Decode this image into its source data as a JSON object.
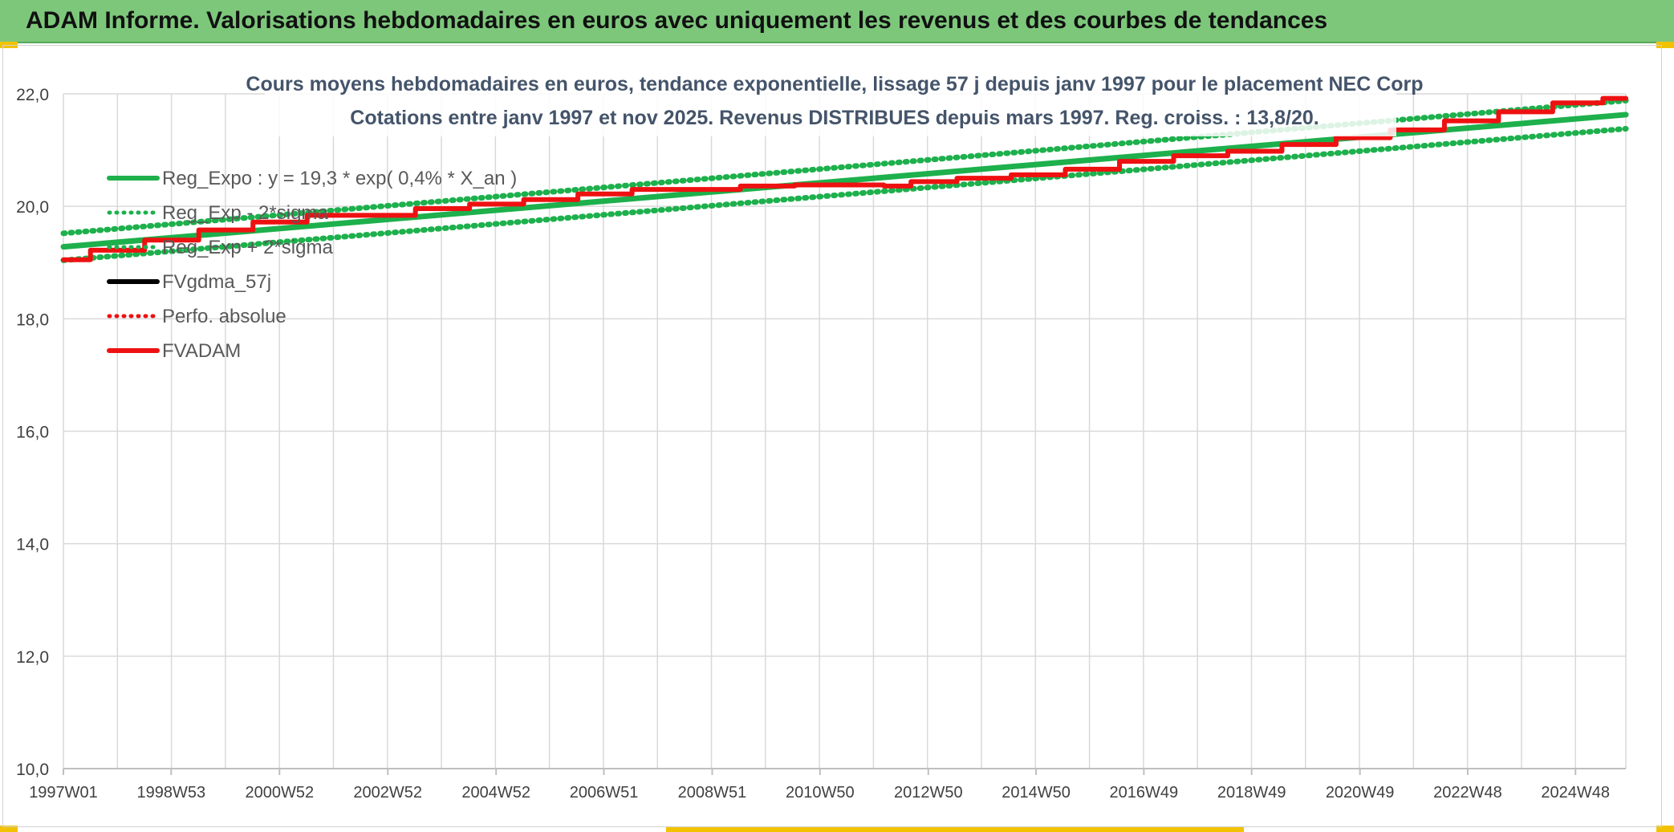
{
  "banner": {
    "title": "ADAM Informe. Valorisations hebdomadaires en euros avec uniquement les revenus et des courbes de tendances"
  },
  "colors": {
    "banner": "#7dc77b",
    "green": "#1db04c",
    "red": "#ee1111",
    "black": "#000000",
    "grid": "#d9d9d9",
    "axis_text": "#404040"
  },
  "chart_data": {
    "type": "line",
    "title": "Cours moyens hebdomadaires en euros, tendance exponentielle, lissage 57 j depuis janv 1997 pour le placement NEC Corp",
    "subtitle": "Cotations entre janv 1997 et nov 2025. Revenus DISTRIBUES depuis mars 1997. Reg. croiss. : 13,8/20.",
    "ylim": [
      10,
      22
    ],
    "yticks": [
      "10,0",
      "12,0",
      "14,0",
      "16,0",
      "18,0",
      "20,0",
      "22,0"
    ],
    "ytick_values": [
      10,
      12,
      14,
      16,
      18,
      20,
      22
    ],
    "xlim": [
      1997.0,
      2025.85
    ],
    "xtick_labels": [
      "1997W01",
      "1998W53",
      "2000W52",
      "2002W52",
      "2004W52",
      "2006W51",
      "2008W51",
      "2010W50",
      "2012W50",
      "2014W50",
      "2016W49",
      "2018W49",
      "2020W49",
      "2022W48",
      "2024W48"
    ],
    "xtick_values": [
      1997.0,
      1998.99,
      2000.99,
      2002.99,
      2004.99,
      2006.98,
      2008.98,
      2010.97,
      2012.97,
      2014.96,
      2016.95,
      2018.94,
      2020.94,
      2022.93,
      2024.92
    ],
    "legend": [
      {
        "label": "Reg_Expo : y = 19,3 * exp( 0,4% *  X_an )",
        "color": "#1db04c",
        "style": "solid"
      },
      {
        "label": "Reg_Exp - 2*sigma",
        "color": "#1db04c",
        "style": "dotted"
      },
      {
        "label": "Reg_Exp + 2*sigma",
        "color": "#1db04c",
        "style": "dotted"
      },
      {
        "label": "FVgdma_57j",
        "color": "#000000",
        "style": "solid"
      },
      {
        "label": "Perfo. absolue",
        "color": "#ee1111",
        "style": "dotted"
      },
      {
        "label": "FVADAM",
        "color": "#ee1111",
        "style": "solid"
      }
    ],
    "series": [
      {
        "name": "Reg_Expo",
        "x": [
          1997.0,
          2025.85
        ],
        "y": [
          19.28,
          21.63
        ]
      },
      {
        "name": "Reg_Exp - 2*sigma",
        "x": [
          1997.0,
          2025.85
        ],
        "y": [
          19.04,
          21.38
        ]
      },
      {
        "name": "Reg_Exp + 2*sigma",
        "x": [
          1997.0,
          2025.85
        ],
        "y": [
          19.52,
          21.88
        ]
      },
      {
        "name": "FVADAM",
        "x": [
          1997.0,
          1998.0,
          1999.0,
          2000.0,
          2001.0,
          2002.0,
          2003.0,
          2004.0,
          2005.0,
          2006.0,
          2007.0,
          2008.0,
          2009.0,
          2010.0,
          2011.0,
          2012.0,
          2012.3,
          2013.0,
          2014.0,
          2015.0,
          2016.0,
          2017.0,
          2018.0,
          2019.0,
          2020.0,
          2021.0,
          2022.0,
          2023.0,
          2024.0,
          2025.0,
          2025.85
        ],
        "y": [
          19.05,
          19.22,
          19.4,
          19.58,
          19.72,
          19.84,
          19.84,
          19.96,
          20.04,
          20.12,
          20.22,
          20.3,
          20.3,
          20.36,
          20.38,
          20.38,
          20.36,
          20.44,
          20.5,
          20.56,
          20.66,
          20.8,
          20.9,
          20.98,
          21.1,
          21.22,
          21.36,
          21.52,
          21.68,
          21.84,
          21.92
        ]
      }
    ]
  }
}
